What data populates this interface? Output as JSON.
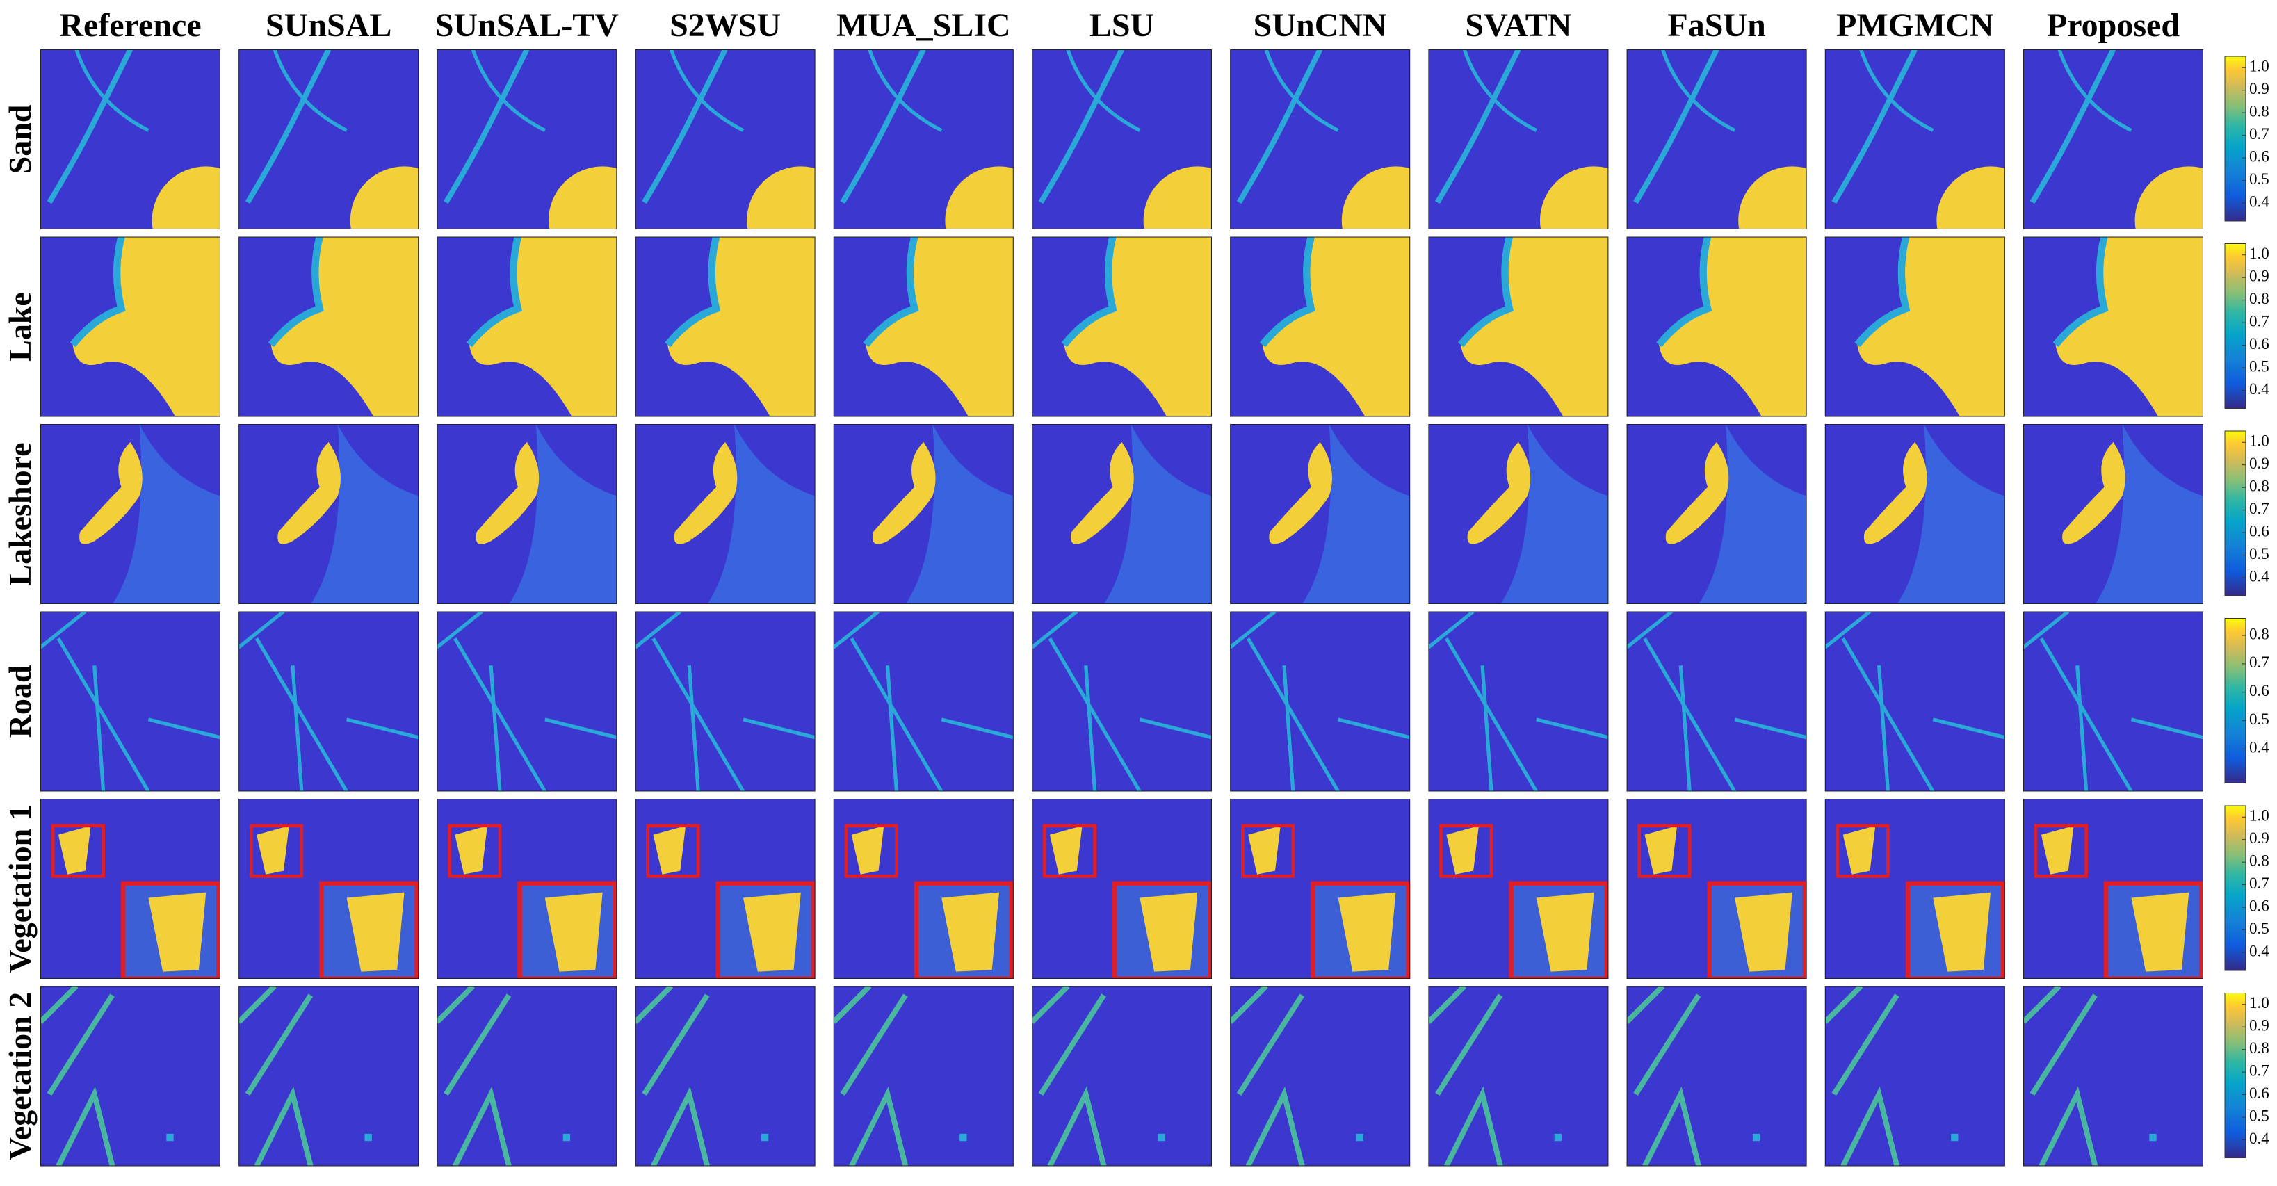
{
  "columns": [
    "Reference",
    "SUnSAL",
    "SUnSAL-TV",
    "S2WSU",
    "MUA_SLIC",
    "LSU",
    "SUnCNN",
    "SVATN",
    "FaSUn",
    "PMGMCN",
    "Proposed"
  ],
  "rows": [
    {
      "label": "Sand",
      "colorbar": {
        "lim": [
          0.32,
          1.05
        ],
        "ticks": [
          0.4,
          0.5,
          0.6,
          0.7,
          0.8,
          0.9,
          {
            "value": 1,
            "label": "1.0"
          }
        ]
      }
    },
    {
      "label": "Lake",
      "colorbar": {
        "lim": [
          0.32,
          1.05
        ],
        "ticks": [
          0.4,
          0.5,
          0.6,
          0.7,
          0.8,
          0.9,
          {
            "value": 1,
            "label": "1.0"
          }
        ]
      }
    },
    {
      "label": "Lakeshore",
      "colorbar": {
        "lim": [
          0.32,
          1.05
        ],
        "ticks": [
          0.4,
          0.5,
          0.6,
          0.7,
          0.8,
          0.9,
          {
            "value": 1,
            "label": "1.0"
          }
        ]
      }
    },
    {
      "label": "Road",
      "colorbar": {
        "lim": [
          0.28,
          0.86
        ],
        "ticks": [
          0.4,
          0.5,
          0.6,
          0.7,
          0.8
        ]
      }
    },
    {
      "label": "Vegetation 1",
      "colorbar": {
        "lim": [
          0.32,
          1.05
        ],
        "ticks": [
          0.4,
          0.5,
          0.6,
          0.7,
          0.8,
          0.9,
          {
            "value": 1,
            "label": "1.0"
          }
        ]
      }
    },
    {
      "label": "Vegetation 2",
      "colorbar": {
        "lim": [
          0.32,
          1.05
        ],
        "ticks": [
          0.4,
          0.5,
          0.6,
          0.7,
          0.8,
          0.9,
          {
            "value": 1,
            "label": "1.0"
          }
        ]
      }
    }
  ]
}
